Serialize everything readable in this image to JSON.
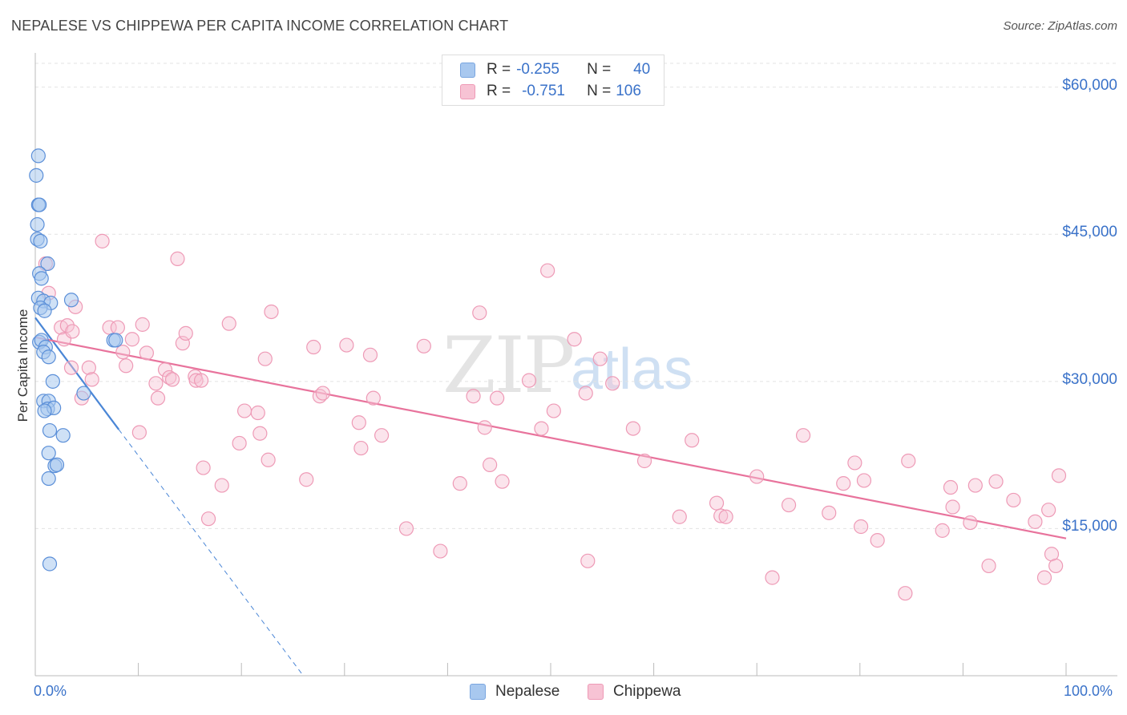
{
  "title": "NEPALESE VS CHIPPEWA PER CAPITA INCOME CORRELATION CHART",
  "source": "Source: ZipAtlas.com",
  "watermark": {
    "zip": "ZIP",
    "atlas": "atlas"
  },
  "legend": {
    "rows": [
      {
        "r_label": "R =",
        "r_value": "-0.255",
        "n_label": "N =",
        "n_value": "40",
        "color": "#a8c8ef",
        "border": "#7aa6e0"
      },
      {
        "r_label": "R =",
        "r_value": "-0.751",
        "n_label": "N =",
        "n_value": "106",
        "color": "#f7c3d4",
        "border": "#ee9ab6"
      }
    ]
  },
  "bottom_legend": [
    {
      "label": "Nepalese",
      "color": "#a8c8ef",
      "border": "#7aa6e0"
    },
    {
      "label": "Chippewa",
      "color": "#f7c3d4",
      "border": "#ee9ab6"
    }
  ],
  "colors": {
    "nepalese": "#4a86d6",
    "chippewa": "#e8739c",
    "tick_text": "#3a72c9",
    "grid": "#e3e3e3"
  },
  "chart_data": {
    "type": "scatter",
    "title": "NEPALESE VS CHIPPEWA PER CAPITA INCOME CORRELATION CHART",
    "xlabel": "",
    "ylabel": "Per Capita Income",
    "x_tick_labels": [
      "0.0%",
      "100.0%"
    ],
    "y_tick_labels": [
      "$15,000",
      "$30,000",
      "$45,000",
      "$60,000"
    ],
    "y_tick_values": [
      15000,
      30000,
      45000,
      60000
    ],
    "xlim": [
      0,
      100
    ],
    "ylim": [
      0,
      63000
    ],
    "grid": true,
    "series": [
      {
        "name": "Nepalese",
        "points": [
          [
            0.3,
            53000
          ],
          [
            0.1,
            51000
          ],
          [
            0.3,
            48000
          ],
          [
            0.4,
            48000
          ],
          [
            0.2,
            46000
          ],
          [
            0.2,
            44500
          ],
          [
            0.5,
            44300
          ],
          [
            1.2,
            42000
          ],
          [
            0.4,
            41000
          ],
          [
            0.6,
            40500
          ],
          [
            0.3,
            38500
          ],
          [
            0.8,
            38200
          ],
          [
            3.5,
            38300
          ],
          [
            1.5,
            38000
          ],
          [
            0.5,
            37500
          ],
          [
            0.9,
            37200
          ],
          [
            0.4,
            34000
          ],
          [
            0.6,
            34200
          ],
          [
            1.0,
            33500
          ],
          [
            0.8,
            33000
          ],
          [
            7.6,
            34200
          ],
          [
            7.8,
            34200
          ],
          [
            1.3,
            32500
          ],
          [
            1.7,
            30000
          ],
          [
            4.7,
            28800
          ],
          [
            0.8,
            28000
          ],
          [
            1.3,
            28000
          ],
          [
            1.2,
            27200
          ],
          [
            1.8,
            27300
          ],
          [
            0.9,
            27000
          ],
          [
            1.4,
            25000
          ],
          [
            2.7,
            24500
          ],
          [
            1.3,
            22700
          ],
          [
            1.9,
            21400
          ],
          [
            2.1,
            21500
          ],
          [
            1.3,
            20100
          ],
          [
            1.4,
            11400
          ]
        ],
        "trend": {
          "x1": 0.0,
          "y1": 36500,
          "x2": 8.1,
          "y2": 25100,
          "dash_to_x": 26.0,
          "dash_to_y": 0
        }
      },
      {
        "name": "Chippewa",
        "points": [
          [
            1.0,
            42000
          ],
          [
            1.3,
            39000
          ],
          [
            2.5,
            35500
          ],
          [
            2.8,
            34300
          ],
          [
            3.1,
            35700
          ],
          [
            3.6,
            35100
          ],
          [
            3.5,
            31400
          ],
          [
            3.9,
            37600
          ],
          [
            4.5,
            28300
          ],
          [
            5.2,
            31400
          ],
          [
            5.5,
            30200
          ],
          [
            6.5,
            44300
          ],
          [
            7.2,
            35500
          ],
          [
            8.0,
            35500
          ],
          [
            8.5,
            33000
          ],
          [
            8.8,
            31600
          ],
          [
            9.4,
            34300
          ],
          [
            10.1,
            24800
          ],
          [
            10.4,
            35800
          ],
          [
            10.8,
            32900
          ],
          [
            11.7,
            29800
          ],
          [
            11.9,
            28300
          ],
          [
            12.6,
            31200
          ],
          [
            13.0,
            30400
          ],
          [
            13.3,
            30200
          ],
          [
            13.8,
            42500
          ],
          [
            14.3,
            33900
          ],
          [
            14.6,
            34900
          ],
          [
            15.5,
            30500
          ],
          [
            15.6,
            30100
          ],
          [
            16.1,
            30100
          ],
          [
            16.3,
            21200
          ],
          [
            16.8,
            16000
          ],
          [
            18.1,
            19400
          ],
          [
            18.8,
            35900
          ],
          [
            19.8,
            23700
          ],
          [
            20.3,
            27000
          ],
          [
            21.6,
            26800
          ],
          [
            21.8,
            24700
          ],
          [
            22.3,
            32300
          ],
          [
            22.6,
            22000
          ],
          [
            22.9,
            37100
          ],
          [
            26.3,
            20000
          ],
          [
            27.0,
            33500
          ],
          [
            27.6,
            28500
          ],
          [
            27.9,
            28800
          ],
          [
            30.2,
            33700
          ],
          [
            31.4,
            25800
          ],
          [
            31.6,
            23200
          ],
          [
            32.5,
            32700
          ],
          [
            32.8,
            28300
          ],
          [
            33.6,
            24500
          ],
          [
            36.0,
            15000
          ],
          [
            37.7,
            33600
          ],
          [
            39.3,
            12700
          ],
          [
            41.2,
            19600
          ],
          [
            42.5,
            28500
          ],
          [
            43.1,
            37000
          ],
          [
            43.6,
            25300
          ],
          [
            44.1,
            21500
          ],
          [
            44.8,
            28300
          ],
          [
            45.3,
            19800
          ],
          [
            47.9,
            30100
          ],
          [
            49.1,
            25200
          ],
          [
            49.7,
            41300
          ],
          [
            50.3,
            27000
          ],
          [
            52.3,
            34300
          ],
          [
            53.4,
            28800
          ],
          [
            53.6,
            11700
          ],
          [
            54.8,
            32300
          ],
          [
            56.0,
            29800
          ],
          [
            58.0,
            25200
          ],
          [
            59.1,
            21900
          ],
          [
            62.5,
            16200
          ],
          [
            63.7,
            24000
          ],
          [
            66.1,
            17600
          ],
          [
            66.5,
            16300
          ],
          [
            67.0,
            16200
          ],
          [
            70.0,
            20300
          ],
          [
            71.5,
            10000
          ],
          [
            73.1,
            17400
          ],
          [
            74.5,
            24500
          ],
          [
            77.0,
            16600
          ],
          [
            78.4,
            19600
          ],
          [
            79.5,
            21700
          ],
          [
            80.1,
            15200
          ],
          [
            80.4,
            19900
          ],
          [
            81.7,
            13800
          ],
          [
            84.4,
            8400
          ],
          [
            84.7,
            21900
          ],
          [
            88.0,
            14800
          ],
          [
            88.8,
            19200
          ],
          [
            89.0,
            17200
          ],
          [
            90.7,
            15600
          ],
          [
            91.2,
            19400
          ],
          [
            92.5,
            11200
          ],
          [
            93.2,
            19800
          ],
          [
            94.9,
            17900
          ],
          [
            97.0,
            15700
          ],
          [
            97.9,
            10000
          ],
          [
            98.3,
            16900
          ],
          [
            98.6,
            12400
          ],
          [
            99.0,
            11200
          ],
          [
            99.3,
            20400
          ]
        ],
        "trend": {
          "x1": 0.0,
          "y1": 34500,
          "x2": 100.0,
          "y2": 14000
        }
      }
    ]
  }
}
